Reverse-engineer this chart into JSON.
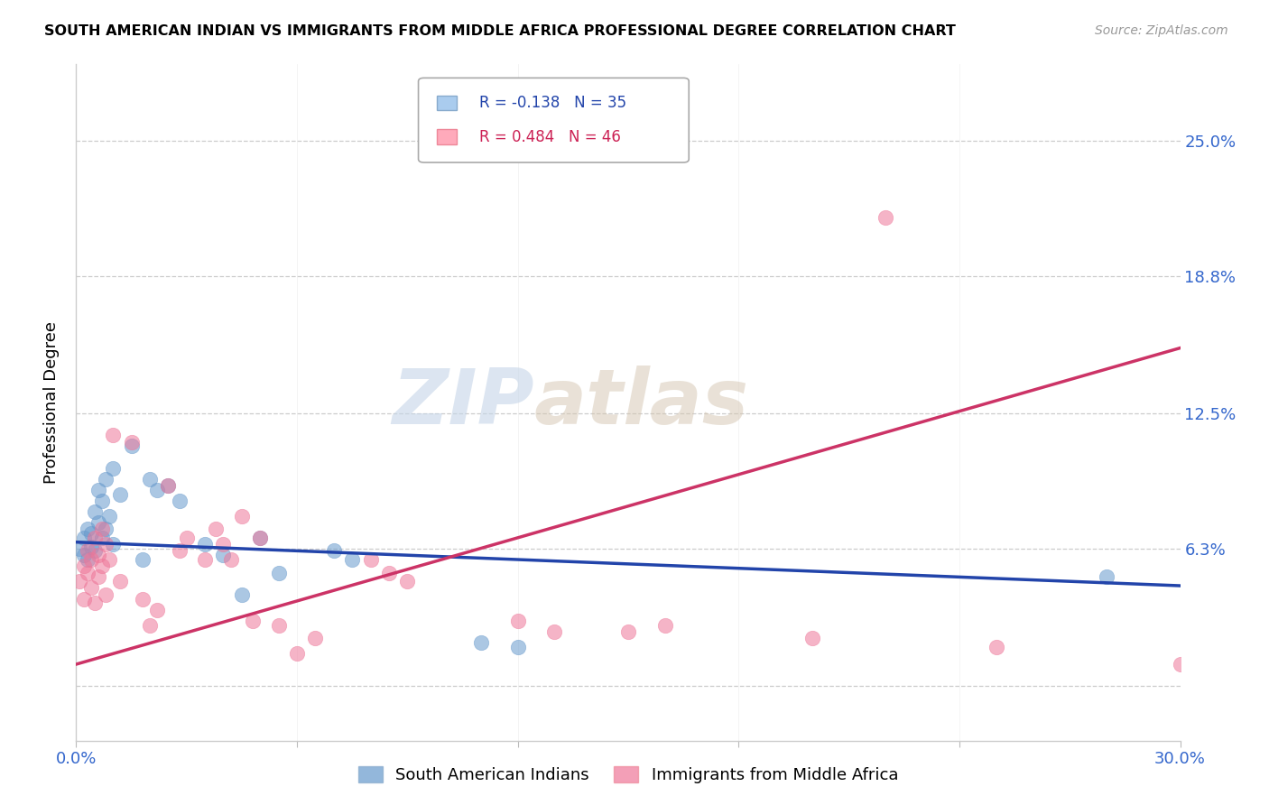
{
  "title": "SOUTH AMERICAN INDIAN VS IMMIGRANTS FROM MIDDLE AFRICA PROFESSIONAL DEGREE CORRELATION CHART",
  "source": "Source: ZipAtlas.com",
  "ylabel": "Professional Degree",
  "xlim": [
    0.0,
    0.3
  ],
  "ylim": [
    -0.025,
    0.285
  ],
  "ytick_positions": [
    0.0,
    0.063,
    0.125,
    0.188,
    0.25
  ],
  "ytick_labels": [
    "",
    "6.3%",
    "12.5%",
    "18.8%",
    "25.0%"
  ],
  "xtick_positions": [
    0.0,
    0.06,
    0.12,
    0.18,
    0.24,
    0.3
  ],
  "xtick_labels": [
    "0.0%",
    "",
    "",
    "",
    "",
    "30.0%"
  ],
  "legend1_r": "-0.138",
  "legend1_n": "35",
  "legend2_r": "0.484",
  "legend2_n": "46",
  "blue_color": "#6699CC",
  "pink_color": "#EE7799",
  "blue_line_color": "#2244AA",
  "pink_line_color": "#CC3366",
  "watermark_zip": "ZIP",
  "watermark_atlas": "atlas",
  "legend_label_blue": "South American Indians",
  "legend_label_pink": "Immigrants from Middle Africa",
  "blue_line_x0": 0.0,
  "blue_line_y0": 0.066,
  "blue_line_x1": 0.3,
  "blue_line_y1": 0.046,
  "pink_line_x0": 0.0,
  "pink_line_y0": 0.01,
  "pink_line_x1": 0.3,
  "pink_line_y1": 0.155,
  "blue_points": [
    [
      0.001,
      0.063
    ],
    [
      0.002,
      0.06
    ],
    [
      0.002,
      0.068
    ],
    [
      0.003,
      0.058
    ],
    [
      0.003,
      0.072
    ],
    [
      0.004,
      0.064
    ],
    [
      0.004,
      0.07
    ],
    [
      0.005,
      0.062
    ],
    [
      0.005,
      0.08
    ],
    [
      0.006,
      0.075
    ],
    [
      0.006,
      0.09
    ],
    [
      0.007,
      0.068
    ],
    [
      0.007,
      0.085
    ],
    [
      0.008,
      0.072
    ],
    [
      0.008,
      0.095
    ],
    [
      0.009,
      0.078
    ],
    [
      0.01,
      0.065
    ],
    [
      0.01,
      0.1
    ],
    [
      0.012,
      0.088
    ],
    [
      0.015,
      0.11
    ],
    [
      0.018,
      0.058
    ],
    [
      0.02,
      0.095
    ],
    [
      0.022,
      0.09
    ],
    [
      0.025,
      0.092
    ],
    [
      0.028,
      0.085
    ],
    [
      0.035,
      0.065
    ],
    [
      0.04,
      0.06
    ],
    [
      0.045,
      0.042
    ],
    [
      0.05,
      0.068
    ],
    [
      0.055,
      0.052
    ],
    [
      0.07,
      0.062
    ],
    [
      0.075,
      0.058
    ],
    [
      0.11,
      0.02
    ],
    [
      0.12,
      0.018
    ],
    [
      0.28,
      0.05
    ]
  ],
  "pink_points": [
    [
      0.001,
      0.048
    ],
    [
      0.002,
      0.055
    ],
    [
      0.002,
      0.04
    ],
    [
      0.003,
      0.062
    ],
    [
      0.003,
      0.052
    ],
    [
      0.004,
      0.058
    ],
    [
      0.004,
      0.045
    ],
    [
      0.005,
      0.068
    ],
    [
      0.005,
      0.038
    ],
    [
      0.006,
      0.06
    ],
    [
      0.006,
      0.05
    ],
    [
      0.007,
      0.055
    ],
    [
      0.007,
      0.072
    ],
    [
      0.008,
      0.042
    ],
    [
      0.008,
      0.065
    ],
    [
      0.009,
      0.058
    ],
    [
      0.01,
      0.115
    ],
    [
      0.012,
      0.048
    ],
    [
      0.015,
      0.112
    ],
    [
      0.018,
      0.04
    ],
    [
      0.02,
      0.028
    ],
    [
      0.022,
      0.035
    ],
    [
      0.025,
      0.092
    ],
    [
      0.028,
      0.062
    ],
    [
      0.03,
      0.068
    ],
    [
      0.035,
      0.058
    ],
    [
      0.038,
      0.072
    ],
    [
      0.04,
      0.065
    ],
    [
      0.042,
      0.058
    ],
    [
      0.045,
      0.078
    ],
    [
      0.048,
      0.03
    ],
    [
      0.05,
      0.068
    ],
    [
      0.055,
      0.028
    ],
    [
      0.06,
      0.015
    ],
    [
      0.065,
      0.022
    ],
    [
      0.08,
      0.058
    ],
    [
      0.085,
      0.052
    ],
    [
      0.09,
      0.048
    ],
    [
      0.12,
      0.03
    ],
    [
      0.13,
      0.025
    ],
    [
      0.15,
      0.025
    ],
    [
      0.16,
      0.028
    ],
    [
      0.2,
      0.022
    ],
    [
      0.22,
      0.215
    ],
    [
      0.25,
      0.018
    ],
    [
      0.3,
      0.01
    ]
  ]
}
